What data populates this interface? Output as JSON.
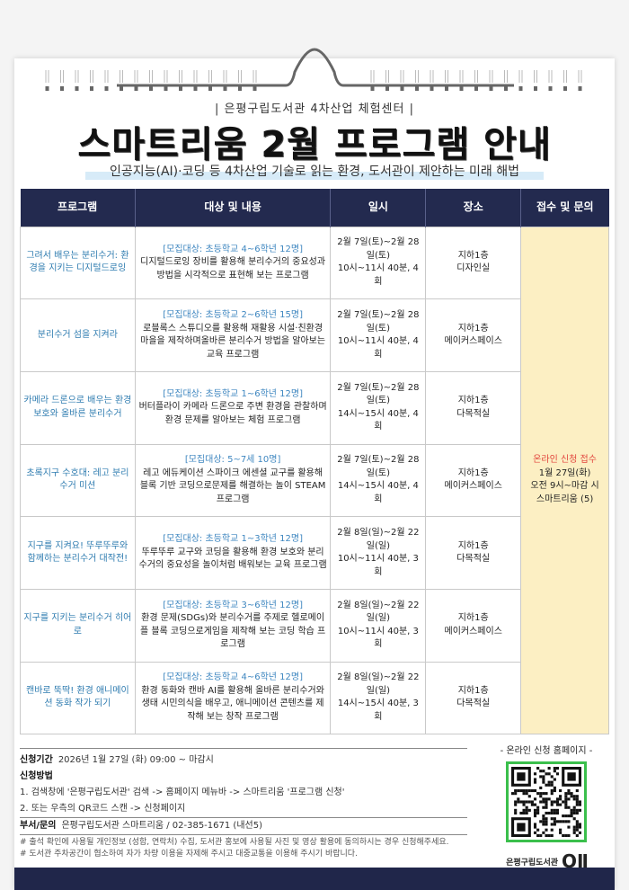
{
  "header": {
    "subtitle": "| 은평구립도서관 4차산업 체험센터 |",
    "title": "스마트리움 2월 프로그램 안내",
    "tagline": "인공지능(AI)·코딩 등 4차산업 기술로 읽는 환경, 도서관이 제안하는 미래 해법"
  },
  "table": {
    "columns": [
      "프로그램",
      "대상 및 내용",
      "일시",
      "장소",
      "접수 및 문의"
    ],
    "rows": [
      {
        "program": "그려서 배우는 분리수거: 환경을 지키는 디지털드로잉",
        "target": "[모집대상: 초등학교 4~6학년 12명]",
        "content": "디지털드로잉 장비를 활용해 분리수거의 중요성과 방법을 시각적으로 표현해 보는 프로그램",
        "date": "2월 7일(토)~2월 28일(토)",
        "time": "10시~11시 40분, 4회",
        "place": "지하1층",
        "room": "디자인실"
      },
      {
        "program": "분리수거 섬을 지켜라",
        "target": "[모집대상: 초등학교 2~6학년 15명]",
        "content": "로블록스 스튜디오를 활용해 재활용 시설·친환경 마을을 제작하며올바른 분리수거 방법을 알아보는 교육 프로그램",
        "date": "2월 7일(토)~2월 28일(토)",
        "time": "10시~11시 40분, 4회",
        "place": "지하1층",
        "room": "메이커스페이스"
      },
      {
        "program": "카메라 드론으로 배우는 환경 보호와 올바른 분리수거",
        "target": "[모집대상: 초등학교 1~6학년 12명]",
        "content": "버터플라이 카메라 드론으로 주변 환경을 관찰하며 환경 문제를 알아보는 체험 프로그램",
        "date": "2월 7일(토)~2월 28일(토)",
        "time": "14시~15시 40분, 4회",
        "place": "지하1층",
        "room": "다목적실"
      },
      {
        "program": "초록지구 수호대: 레고 분리수거 미션",
        "target": "[모집대상: 5~7세 10명]",
        "content": "레고 에듀케이션 스파이크 에센셜 교구를 활용해 블록 기반 코딩으로문제를 해결하는 놀이 STEAM 프로그램",
        "date": "2월 7일(토)~2월 28일(토)",
        "time": "14시~15시 40분, 4회",
        "place": "지하1층",
        "room": "메이커스페이스"
      },
      {
        "program": "지구를 지켜요! 뚜루뚜루와 함께하는 분리수거 대작전!",
        "target": "[모집대상: 초등학교 1~3학년 12명]",
        "content": "뚜루뚜루 교구와 코딩을 활용해 환경 보호와 분리수거의 중요성을 놀이처럼 배워보는 교육 프로그램",
        "date": "2월 8일(일)~2월 22일(일)",
        "time": "10시~11시 40분, 3회",
        "place": "지하1층",
        "room": "다목적실"
      },
      {
        "program": "지구를 지키는 분리수거 히어로",
        "target": "[모집대상: 초등학교 3~6학년 12명]",
        "content": "환경 문제(SDGs)와 분리수거를 주제로 헬로메이플 블록 코딩으로게임을 제작해 보는 코딩 학습 프로그램",
        "date": "2월 8일(일)~2월 22일(일)",
        "time": "10시~11시 40분, 3회",
        "place": "지하1층",
        "room": "메이커스페이스"
      },
      {
        "program": "캔바로 뚝딱! 환경 애니메이션 동화 작가 되기",
        "target": "[모집대상: 초등학교 4~6학년 12명]",
        "content": "환경 동화와 캔바 AI를 활용해 올바른 분리수거와 생태 시민의식을 배우고, 애니메이션 콘텐츠를 제작해 보는 창작 프로그램",
        "date": "2월 8일(일)~2월 22일(일)",
        "time": "14시~15시 40분, 3회",
        "place": "지하1층",
        "room": "다목적실"
      }
    ],
    "registration": {
      "title": "온라인 신청 접수",
      "date": "1월 27일(화)",
      "time": "오전 9시~마감 시",
      "contact": "스마트리움 (5)"
    }
  },
  "footer": {
    "period_label": "신청기간",
    "period": "2026년 1월 27일 (화) 09:00 ~ 마감시",
    "method_label": "신청방법",
    "method1": "1. 검색창에 '은평구립도서관' 검색 -> 홈페이지 메뉴바 -> 스마트리움 '프로그램 신청'",
    "method2": "2. 또는 우측의 QR코드 스캔 -> 신청페이지",
    "dept_label": "부서/문의",
    "dept": "은평구립도서관 스마트리움 / 02-385-1671 (내선5)",
    "note1": "# 출석 확인에 사용될 개인정보 (성함, 연락처) 수집, 도서관 홍보에 사용될 사진 및 영상 활용에 동의하시는 경우 신청해주세요.",
    "note2": "# 도서관 주차공간이 협소하여 자가 차량 이용을 자제해 주시고 대중교통을 이용해 주시기 바랍니다."
  },
  "qr": {
    "caption": "- 온라인 신청 홈페이지 -",
    "library": "은평구립도서관",
    "logo": "OII"
  },
  "colors": {
    "navy": "#232a4f",
    "accent_blue": "#2f7cb0",
    "highlight": "#fcefc3",
    "red": "#e2463e",
    "qr_border": "#3bbf4c"
  }
}
